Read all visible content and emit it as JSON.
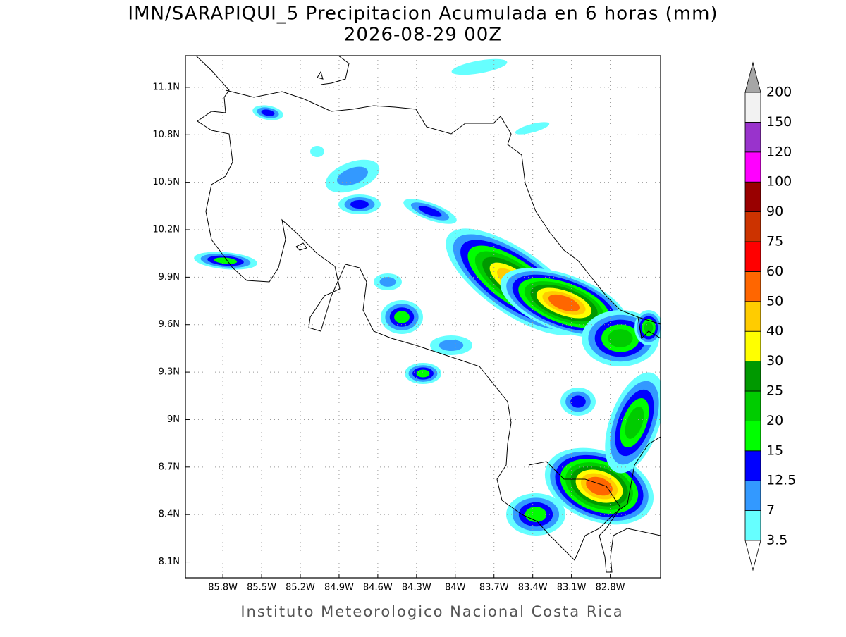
{
  "header": {
    "title": "IMN/SARAPIQUI_5 Precipitacion Acumulada en 6 horas (mm)",
    "subtitle": "2026-08-29 00Z"
  },
  "map": {
    "lonlim": [
      -86.09,
      -82.41
    ],
    "latlim": [
      8.0,
      11.3
    ],
    "grid": true,
    "lon_ticks": [
      {
        "value": -85.8,
        "label": "85.8W"
      },
      {
        "value": -85.5,
        "label": "85.5W"
      },
      {
        "value": -85.2,
        "label": "85.2W"
      },
      {
        "value": -84.9,
        "label": "84.9W"
      },
      {
        "value": -84.6,
        "label": "84.6W"
      },
      {
        "value": -84.3,
        "label": "84.3W"
      },
      {
        "value": -84.0,
        "label": "84W"
      },
      {
        "value": -83.7,
        "label": "83.7W"
      },
      {
        "value": -83.4,
        "label": "83.4W"
      },
      {
        "value": -83.1,
        "label": "83.1W"
      },
      {
        "value": -82.8,
        "label": "82.8W"
      }
    ],
    "lat_ticks": [
      {
        "value": 8.1,
        "label": "8.1N"
      },
      {
        "value": 8.4,
        "label": "8.4N"
      },
      {
        "value": 8.7,
        "label": "8.7N"
      },
      {
        "value": 9.0,
        "label": "9N"
      },
      {
        "value": 9.3,
        "label": "9.3N"
      },
      {
        "value": 9.6,
        "label": "9.6N"
      },
      {
        "value": 9.9,
        "label": "9.9N"
      },
      {
        "value": 10.2,
        "label": "10.2N"
      },
      {
        "value": 10.5,
        "label": "10.5N"
      },
      {
        "value": 10.8,
        "label": "10.8N"
      },
      {
        "value": 11.1,
        "label": "11.1N"
      }
    ]
  },
  "colorbar": {
    "levels": [
      3.5,
      7,
      12.5,
      15,
      20,
      25,
      30,
      40,
      50,
      60,
      75,
      90,
      100,
      120,
      150,
      200
    ],
    "colors": [
      "#66ffff",
      "#3399ff",
      "#0000ff",
      "#00ff00",
      "#00cc00",
      "#009900",
      "#ffff00",
      "#ffcc00",
      "#ff6600",
      "#ff0000",
      "#cc3300",
      "#990000",
      "#ff00ff",
      "#9933cc",
      "#f2f2f2"
    ],
    "under_color": "#ffffff",
    "over_color": "#a6a6a6"
  },
  "footer": "Instituto Meteorologico Nacional Costa Rica"
}
